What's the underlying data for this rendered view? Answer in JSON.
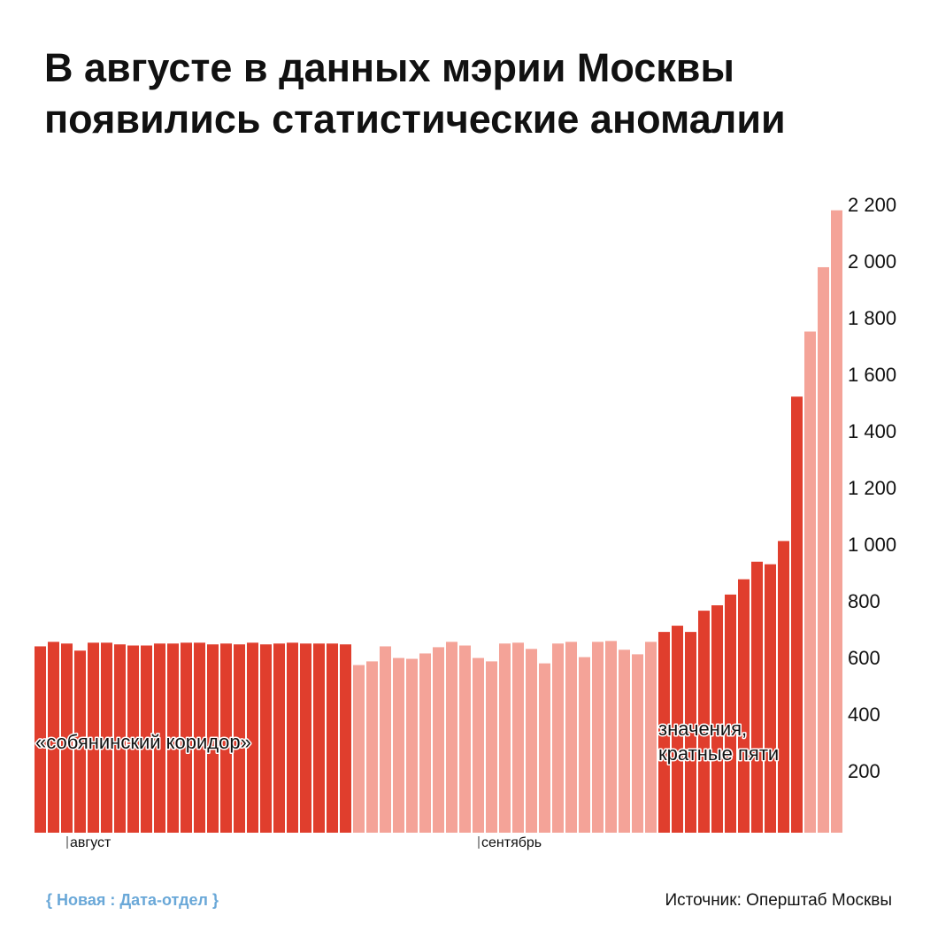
{
  "chart_data": {
    "type": "bar",
    "title": "В августе в данных мэрии Москвы появились статистические аномалии",
    "source": "Источник: Оперштаб Москвы",
    "brand": "{ Новая : Дата-отдел }",
    "annotations": [
      [
        "«собянинский коридор»"
      ],
      [
        "значения,",
        "кратные пяти"
      ]
    ],
    "categories": [
      null,
      null,
      "август",
      null,
      null,
      null,
      null,
      null,
      null,
      null,
      null,
      null,
      null,
      null,
      null,
      null,
      null,
      null,
      null,
      null,
      null,
      null,
      null,
      null,
      null,
      null,
      null,
      null,
      null,
      null,
      null,
      null,
      null,
      "сентябрь",
      null,
      null,
      null,
      null,
      null,
      null,
      null,
      null,
      null,
      null,
      null,
      null,
      null,
      null,
      null,
      null,
      null,
      null,
      null,
      null,
      null,
      null,
      null,
      null,
      null,
      null,
      null
    ],
    "values": [
      658,
      674,
      668,
      643,
      671,
      671,
      665,
      661,
      661,
      668,
      668,
      671,
      671,
      665,
      668,
      665,
      671,
      665,
      668,
      671,
      668,
      668,
      668,
      665,
      592,
      605,
      658,
      617,
      614,
      633,
      655,
      674,
      661,
      617,
      605,
      668,
      671,
      649,
      598,
      668,
      674,
      620,
      674,
      677,
      646,
      630,
      674,
      709,
      731,
      709,
      784,
      803,
      841,
      895,
      957,
      948,
      1030,
      1540,
      1770,
      1997,
      2198
    ],
    "colors": [
      "#e03e2d",
      "#e03e2d",
      "#e03e2d",
      "#e03e2d",
      "#e03e2d",
      "#e03e2d",
      "#e03e2d",
      "#e03e2d",
      "#e03e2d",
      "#e03e2d",
      "#e03e2d",
      "#e03e2d",
      "#e03e2d",
      "#e03e2d",
      "#e03e2d",
      "#e03e2d",
      "#e03e2d",
      "#e03e2d",
      "#e03e2d",
      "#e03e2d",
      "#e03e2d",
      "#e03e2d",
      "#e03e2d",
      "#e03e2d",
      "#f4a398",
      "#f4a398",
      "#f4a398",
      "#f4a398",
      "#f4a398",
      "#f4a398",
      "#f4a398",
      "#f4a398",
      "#f4a398",
      "#f4a398",
      "#f4a398",
      "#f4a398",
      "#f4a398",
      "#f4a398",
      "#f4a398",
      "#f4a398",
      "#f4a398",
      "#f4a398",
      "#f4a398",
      "#f4a398",
      "#f4a398",
      "#f4a398",
      "#f4a398",
      "#e03e2d",
      "#e03e2d",
      "#e03e2d",
      "#e03e2d",
      "#e03e2d",
      "#e03e2d",
      "#e03e2d",
      "#e03e2d",
      "#e03e2d",
      "#e03e2d",
      "#e03e2d",
      "#f4a398",
      "#f4a398",
      "#f4a398"
    ],
    "ylim": [
      0,
      2200
    ],
    "yticks": [
      200,
      400,
      600,
      800,
      {
        "value": 1000,
        "label": "1 000"
      },
      {
        "value": 1200,
        "label": "1 200"
      },
      {
        "value": 1400,
        "label": "1 400"
      },
      {
        "value": 1600,
        "label": "1 600"
      },
      {
        "value": 1800,
        "label": "1 800"
      },
      {
        "value": 2000,
        "label": "2 000"
      },
      {
        "value": 2200,
        "label": "2 200"
      }
    ],
    "grid": false
  }
}
